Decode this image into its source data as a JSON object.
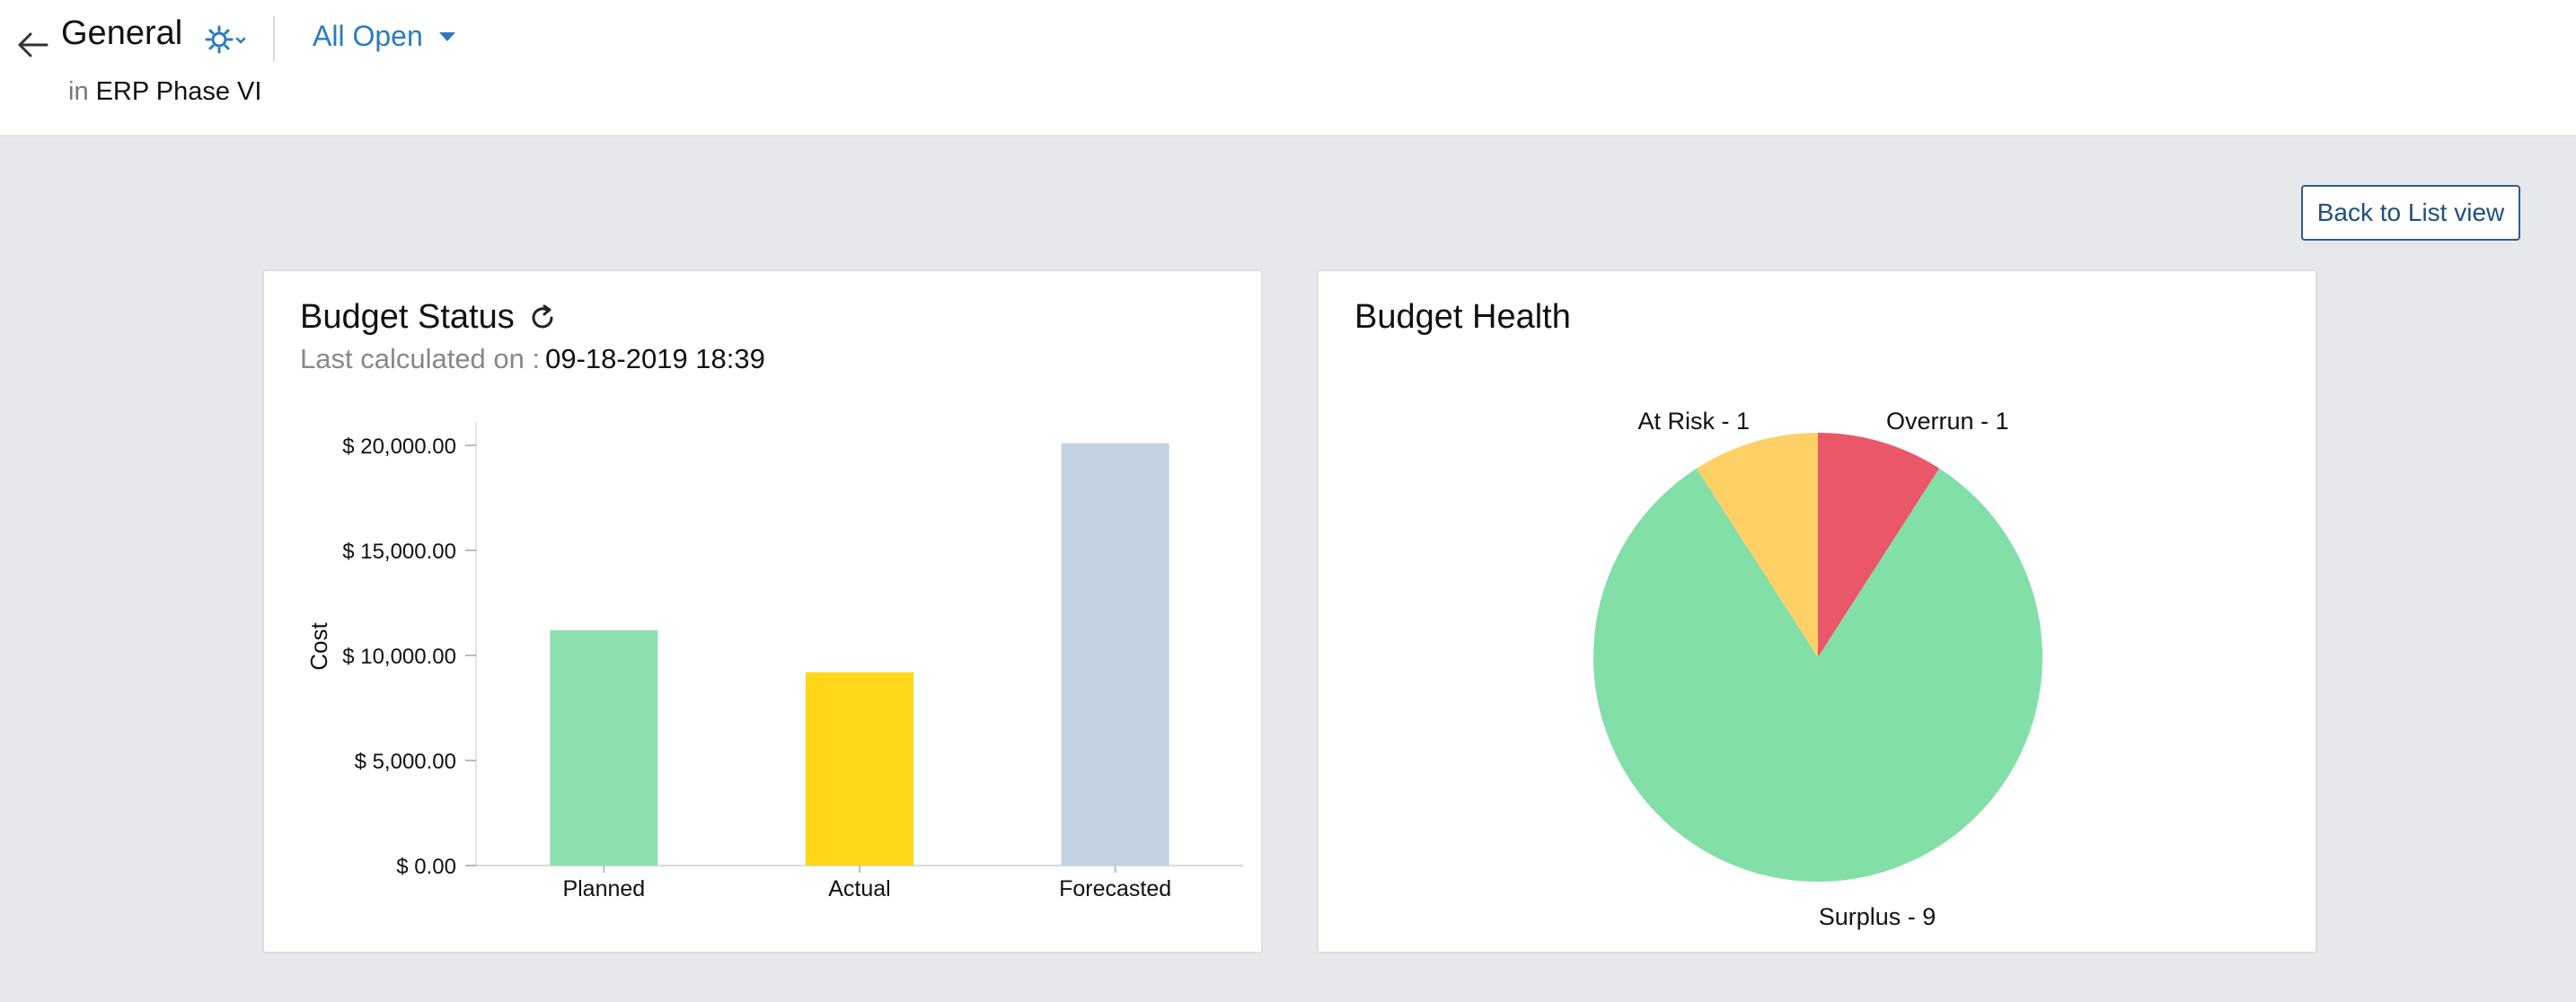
{
  "header": {
    "title": "General",
    "filter_label": "All Open",
    "project_prefix": "in",
    "project_name": "ERP Phase VI"
  },
  "actions": {
    "back_to_list_label": "Back to List view"
  },
  "budget_status": {
    "title": "Budget Status",
    "last_calculated_label": "Last calculated on :",
    "last_calculated_value": "09-18-2019 18:39"
  },
  "budget_health": {
    "title": "Budget Health"
  },
  "colors": {
    "accent": "#2a7bbd",
    "planned": "#8be0ad",
    "actual": "#fed71a",
    "forecasted": "#c3d3e1",
    "surplus": "#82dfa8",
    "at_risk": "#ffd065",
    "overrun": "#ea5769"
  },
  "icons": {
    "back": "arrow-left-icon",
    "settings": "gear-icon",
    "filter": "caret-down-icon",
    "refresh": "refresh-icon"
  },
  "chart_data": [
    {
      "type": "bar",
      "title": "Budget Status",
      "categories": [
        "Planned",
        "Actual",
        "Forecasted"
      ],
      "values": [
        11200,
        9200,
        20100
      ],
      "ylabel": "Cost",
      "xlabel": "",
      "ylim": [
        0,
        20000
      ],
      "yticks": [
        0,
        5000,
        10000,
        15000,
        20000
      ],
      "ytick_labels": [
        "$ 0.00",
        "$ 5,000.00",
        "$ 10,000.00",
        "$ 15,000.00",
        "$ 20,000.00"
      ],
      "grid": false
    },
    {
      "type": "pie",
      "title": "Budget Health",
      "labels": [
        "Overrun",
        "Surplus",
        "At Risk"
      ],
      "values": [
        1,
        9,
        1
      ],
      "slice_labels": [
        "Overrun - 1",
        "Surplus - 9",
        "At Risk - 1"
      ]
    }
  ]
}
